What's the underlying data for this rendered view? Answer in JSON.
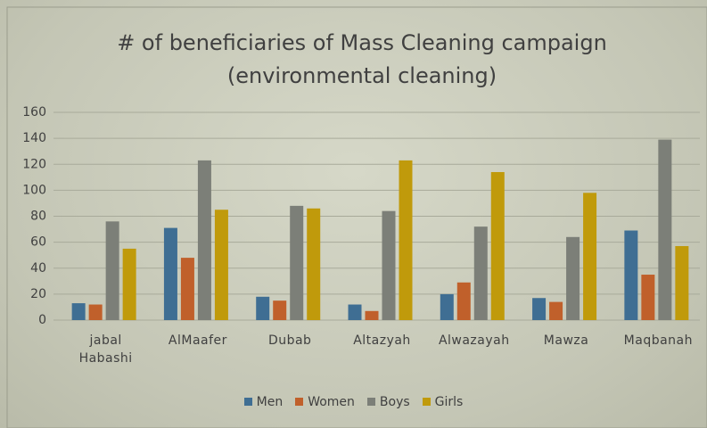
{
  "chart_data": {
    "type": "bar",
    "title": "# of beneficiaries of Mass Cleaning campaign (environmental cleaning)",
    "categories": [
      "jabal Habashi",
      "AlMaafer",
      "Dubab",
      "Altazyah",
      "Alwazayah",
      "Mawza",
      "Maqbanah"
    ],
    "series": [
      {
        "name": "Men",
        "color": "#3f6e93",
        "values": [
          13,
          71,
          18,
          12,
          20,
          17,
          69
        ]
      },
      {
        "name": "Women",
        "color": "#c0602b",
        "values": [
          12,
          48,
          15,
          7,
          29,
          14,
          35
        ]
      },
      {
        "name": "Boys",
        "color": "#7c7f78",
        "values": [
          76,
          123,
          88,
          84,
          72,
          64,
          139
        ]
      },
      {
        "name": "Girls",
        "color": "#c09a0b",
        "values": [
          55,
          85,
          86,
          123,
          114,
          98,
          57
        ]
      }
    ],
    "ylim": [
      0,
      160
    ],
    "yticks": [
      0,
      20,
      40,
      60,
      80,
      100,
      120,
      140,
      160
    ],
    "grid": true,
    "legend": "bottom"
  }
}
